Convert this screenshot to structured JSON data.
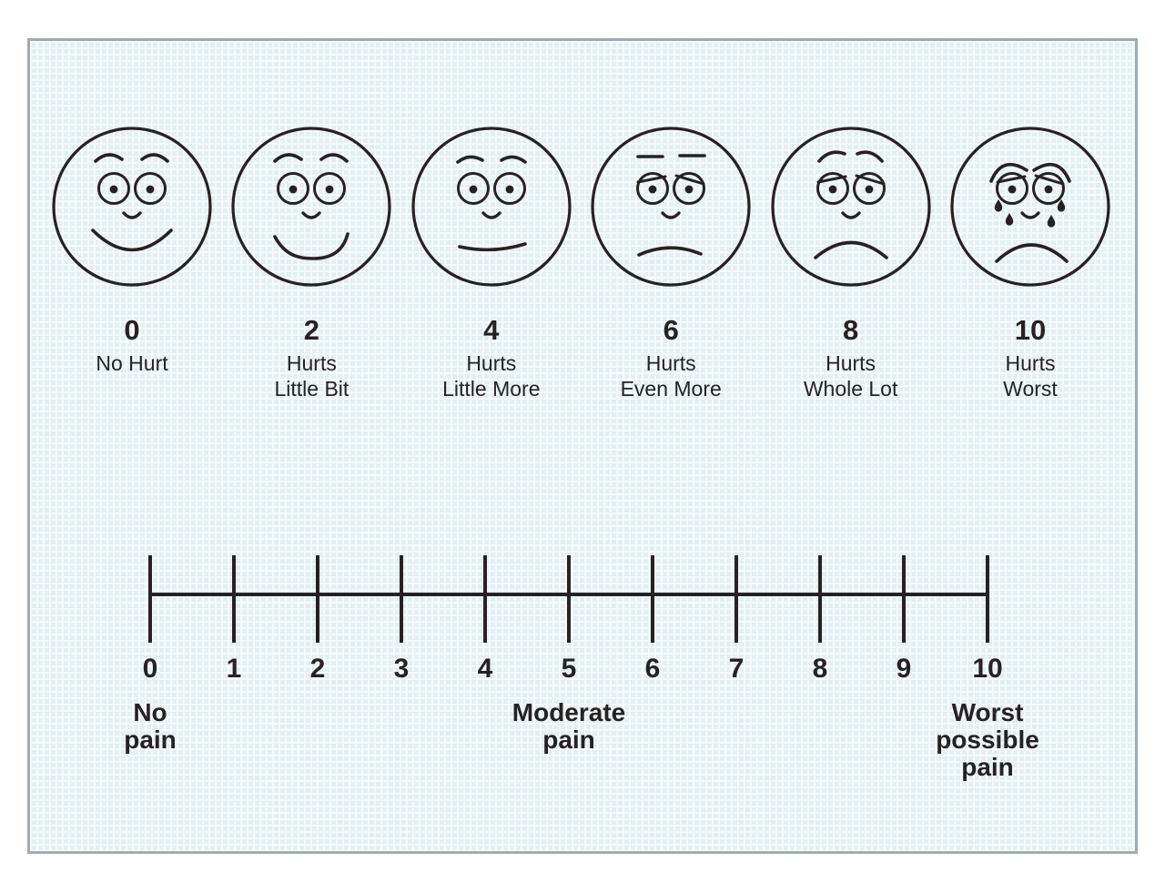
{
  "figure": {
    "description_labels": [],
    "colors": {
      "page_bg": "#ffffff",
      "panel_bg": "#e4eff2",
      "panel_border": "#9cadb2",
      "grid_line": "#f4fafb",
      "ink": "#262223"
    }
  },
  "faces_scale": {
    "items": [
      {
        "value": "0",
        "label_lines": [
          "No Hurt"
        ],
        "expression": "no-hurt"
      },
      {
        "value": "2",
        "label_lines": [
          "Hurts",
          "Little Bit"
        ],
        "expression": "hurts-little-bit"
      },
      {
        "value": "4",
        "label_lines": [
          "Hurts",
          "Little More"
        ],
        "expression": "hurts-little-more"
      },
      {
        "value": "6",
        "label_lines": [
          "Hurts",
          "Even More"
        ],
        "expression": "hurts-even-more"
      },
      {
        "value": "8",
        "label_lines": [
          "Hurts",
          "Whole Lot"
        ],
        "expression": "hurts-whole-lot"
      },
      {
        "value": "10",
        "label_lines": [
          "Hurts",
          "Worst"
        ],
        "expression": "hurts-worst"
      }
    ]
  },
  "numeric_scale": {
    "min": 0,
    "max": 10,
    "tick_labels": [
      "0",
      "1",
      "2",
      "3",
      "4",
      "5",
      "6",
      "7",
      "8",
      "9",
      "10"
    ],
    "anchors": [
      {
        "position": 0,
        "lines": [
          "No",
          "pain"
        ]
      },
      {
        "position": 5,
        "lines": [
          "Moderate",
          "pain"
        ]
      },
      {
        "position": 10,
        "lines": [
          "Worst",
          "possible",
          "pain"
        ]
      }
    ]
  }
}
